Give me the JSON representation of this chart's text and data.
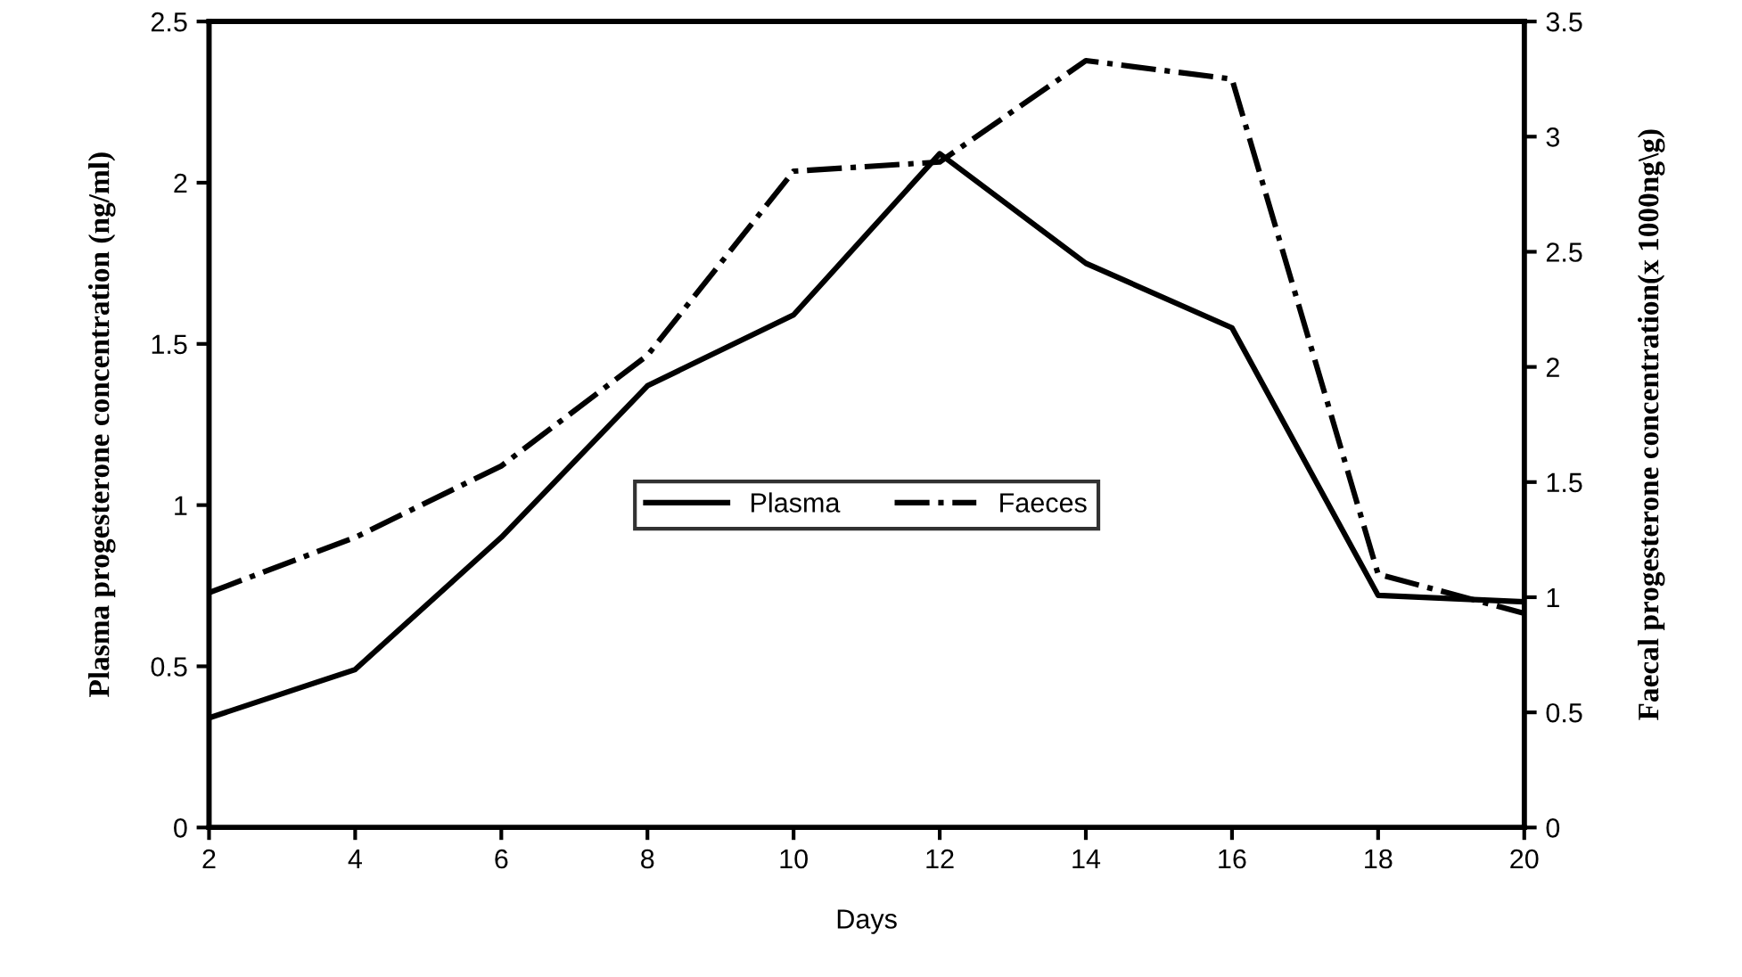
{
  "chart_data": {
    "type": "line",
    "xlabel": "Days",
    "ylabel": "Plasma progesterone concentration (ng/ml)",
    "y2label": "Faecal progesterone concentration(x 1000ng\\g)",
    "x": [
      2,
      4,
      6,
      8,
      10,
      12,
      14,
      16,
      18,
      20
    ],
    "series": [
      {
        "name": "Plasma",
        "color": "#000000",
        "line_style": "solid",
        "values": [
          0.34,
          0.49,
          0.9,
          1.37,
          1.59,
          2.09,
          1.75,
          1.55,
          0.72,
          0.7
        ]
      },
      {
        "name": "Faeces",
        "color": "#000000",
        "line_style": "dashdot",
        "axis": "y2",
        "values": [
          1.02,
          1.26,
          1.57,
          2.05,
          2.85,
          2.89,
          3.33,
          3.25,
          1.1,
          0.93
        ]
      }
    ],
    "xlim": [
      2,
      20
    ],
    "xticks": [
      2,
      4,
      6,
      8,
      10,
      12,
      14,
      16,
      18,
      20
    ],
    "ylim": [
      0,
      2.5
    ],
    "yticks": [
      0,
      0.5,
      1,
      1.5,
      2,
      2.5
    ],
    "y2lim": [
      0,
      3.5
    ],
    "y2ticks": [
      0,
      0.5,
      1,
      1.5,
      2,
      2.5,
      3,
      3.5
    ],
    "grid": false,
    "legend": "center",
    "marker": "none"
  }
}
